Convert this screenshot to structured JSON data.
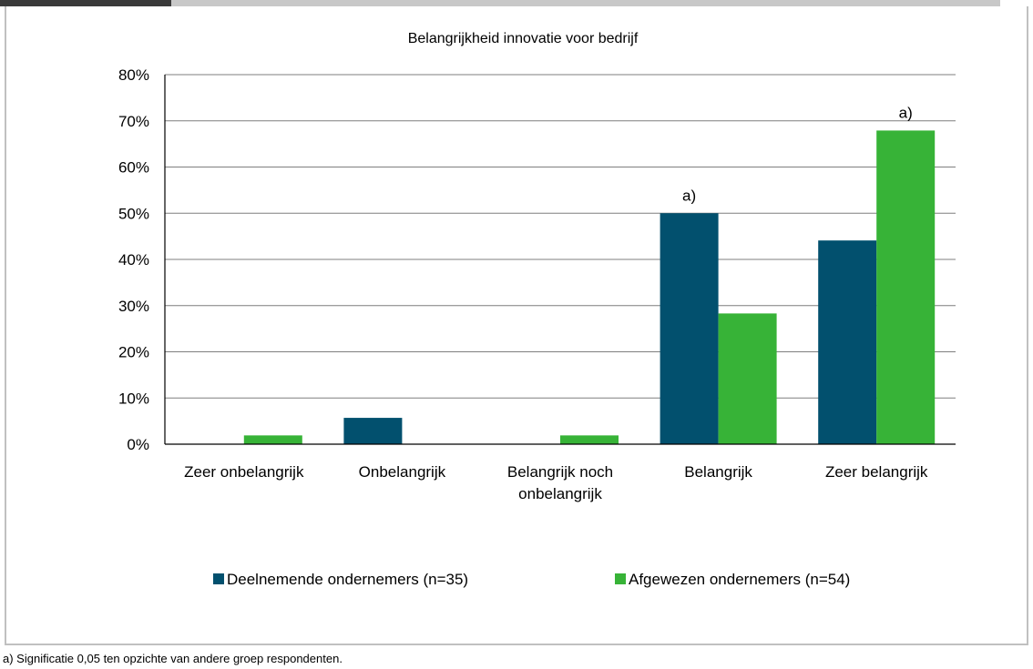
{
  "chart_data": {
    "type": "bar",
    "title": "Belangrijkheid innovatie voor bedrijf",
    "categories": [
      "Zeer onbelangrijk",
      "Onbelangrijk",
      "Belangrijk noch onbelangrijk",
      "Belangrijk",
      "Zeer belangrijk"
    ],
    "category_lines": [
      [
        "Zeer onbelangrijk"
      ],
      [
        "Onbelangrijk"
      ],
      [
        "Belangrijk noch",
        "onbelangrijk"
      ],
      [
        "Belangrijk"
      ],
      [
        "Zeer belangrijk"
      ]
    ],
    "series": [
      {
        "name": "Deelnemende ondernemers (n=35)",
        "color": "#02506e",
        "values": [
          0,
          5.7,
          0,
          50.0,
          44.1
        ]
      },
      {
        "name": "Afgewezen ondernemers (n=54)",
        "color": "#37b337",
        "values": [
          1.9,
          0,
          1.9,
          28.3,
          67.9
        ]
      }
    ],
    "annotations": [
      {
        "category": "Belangrijk",
        "series": "Deelnemende ondernemers (n=35)",
        "text": "a)"
      },
      {
        "category": "Zeer belangrijk",
        "series": "Afgewezen ondernemers (n=54)",
        "text": "a)"
      }
    ],
    "ylim": [
      0,
      80
    ],
    "ytick_step": 10,
    "ytick_format": "percent",
    "grid": true,
    "legend": "bottom"
  },
  "footnote": "a) Significatie 0,05 ten opzichte van andere groep respondenten."
}
